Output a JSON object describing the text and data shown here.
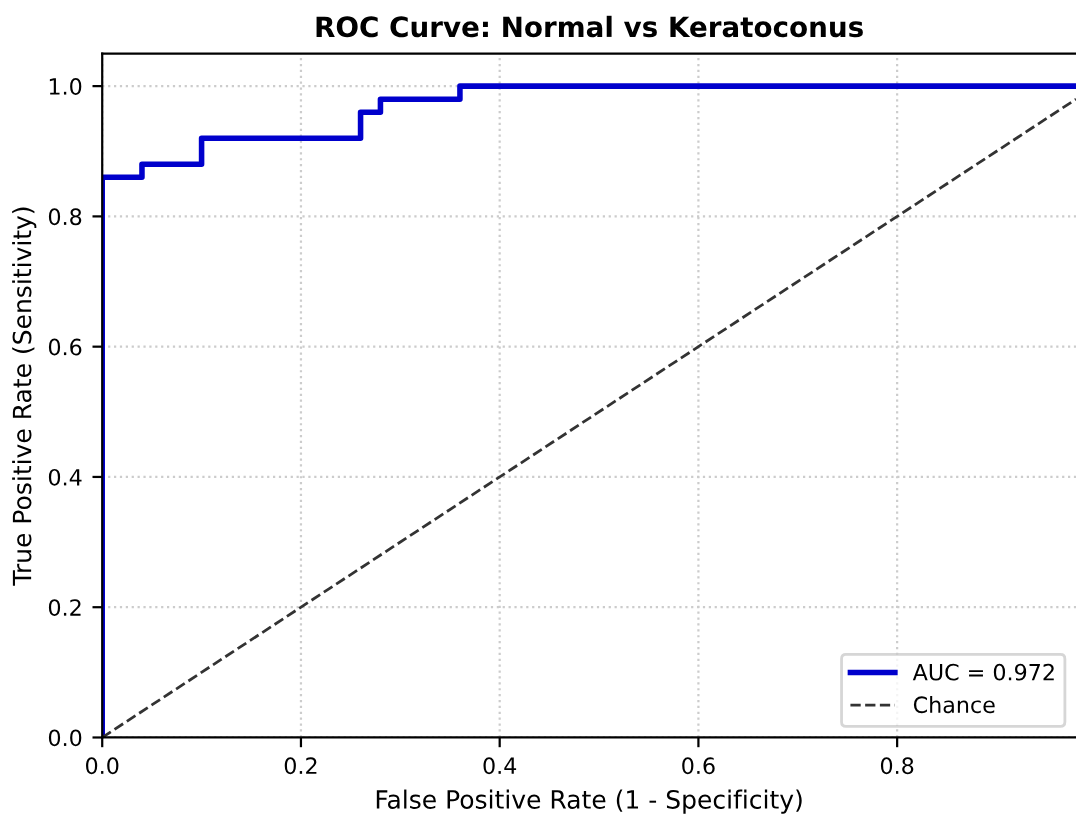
{
  "chart_data": {
    "type": "line",
    "title": "ROC Curve: Normal vs Keratoconus",
    "xlabel": "False Positive Rate (1 - Specificity)",
    "ylabel": "True Positive Rate (Sensitivity)",
    "series": [
      {
        "name": "AUC = 0.972",
        "color": "#0000cc",
        "line_style": "solid",
        "x": [
          0,
          0,
          0.04,
          0.04,
          0.1,
          0.1,
          0.26,
          0.26,
          0.28,
          0.28,
          0.36,
          0.36,
          0.98
        ],
        "values": [
          0,
          0.86,
          0.86,
          0.88,
          0.88,
          0.92,
          0.92,
          0.96,
          0.96,
          0.98,
          0.98,
          1,
          1
        ]
      },
      {
        "name": "Chance",
        "color": "#333333",
        "line_style": "dashed",
        "x": [
          0,
          0.98
        ],
        "values": [
          0,
          0.98
        ]
      }
    ],
    "xlim": [
      0,
      0.98
    ],
    "ylim": [
      0,
      1.05
    ],
    "xticks": [
      {
        "value": 0,
        "label": "0.0"
      },
      0.2,
      0.4,
      0.6,
      0.8
    ],
    "yticks": [
      {
        "value": 0,
        "label": "0.0"
      },
      0.2,
      0.4,
      0.6,
      0.8,
      {
        "value": 1,
        "label": "1.0"
      }
    ],
    "grid": true,
    "legend": "lower right",
    "marker": "none"
  }
}
